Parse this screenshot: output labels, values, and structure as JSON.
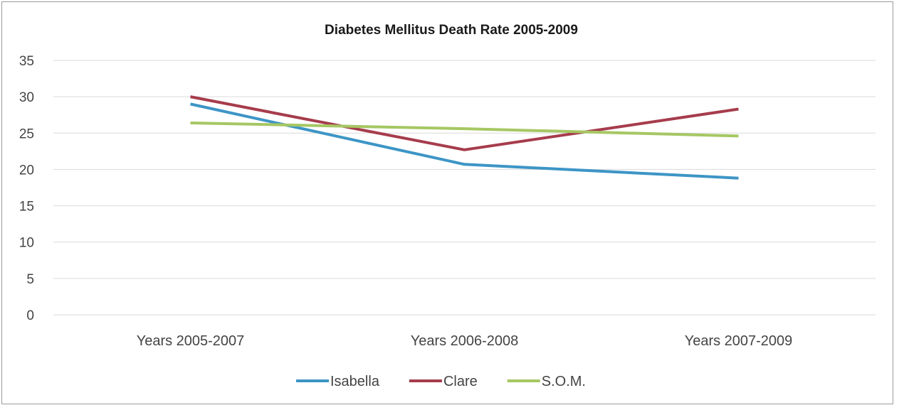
{
  "chart_data": {
    "type": "line",
    "title": "Diabetes Mellitus Death Rate 2005-2009",
    "xlabel": "",
    "ylabel": "",
    "categories": [
      "Years 2005-2007",
      "Years 2006-2008",
      "Years 2007-2009"
    ],
    "ylim": [
      0,
      35
    ],
    "yticks": [
      0,
      5,
      10,
      15,
      20,
      25,
      30,
      35
    ],
    "grid": true,
    "legend": "bottom",
    "series": [
      {
        "name": "Isabella",
        "values": [
          29,
          20.7,
          18.8
        ],
        "color": "#3d95c6"
      },
      {
        "name": "Clare",
        "values": [
          30,
          22.7,
          28.3
        ],
        "color": "#a63c4c"
      },
      {
        "name": "S.O.M.",
        "values": [
          26.4,
          25.6,
          24.6
        ],
        "color": "#a6c763"
      }
    ]
  }
}
